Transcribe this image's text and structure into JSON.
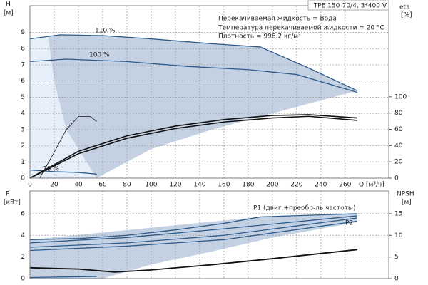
{
  "header": "TPE 150-70/4, 3*400 V",
  "notes": [
    "Перекачиваемая жидкость = Вода",
    "Температура перекачиваемой жидкости = 20 °C",
    "Плотность = 998.2 кг/м³"
  ],
  "chart_data": [
    {
      "type": "line",
      "y_label": "H",
      "y_unit": "[м]",
      "y2_label": "eta",
      "y2_unit": "[%]",
      "x_label": "Q [м³/ч]",
      "xlim": [
        0,
        296
      ],
      "xticks": [
        0,
        20,
        40,
        60,
        80,
        100,
        120,
        140,
        160,
        180,
        200,
        220,
        240,
        260
      ],
      "ylim": [
        0,
        10.65
      ],
      "yticks": [
        0,
        1,
        2,
        3,
        4,
        5,
        6,
        7,
        8,
        9
      ],
      "y2lim": [
        0,
        212
      ],
      "y2ticks": [
        0,
        20,
        40,
        60,
        80,
        100
      ],
      "grid": true,
      "areas": [
        {
          "color": "#e6eff9",
          "x": [
            0,
            0,
            15,
            20,
            30,
            55
          ],
          "y": [
            0,
            8.6,
            8.7,
            6,
            3,
            0
          ]
        },
        {
          "color": "#c3d1e2",
          "x": [
            55,
            30,
            20,
            15,
            25,
            60,
            100,
            150,
            190,
            230,
            270,
            200,
            150,
            100
          ],
          "y": [
            0,
            3,
            6,
            8.7,
            8.85,
            8.8,
            8.6,
            8.3,
            8.1,
            6.8,
            5.4,
            4,
            3,
            1.8
          ]
        }
      ],
      "series": [
        {
          "name": "110 %",
          "color": "#2e5a8a",
          "width": 1.3,
          "x": [
            0,
            25,
            60,
            100,
            150,
            190,
            230,
            270
          ],
          "values": [
            8.6,
            8.85,
            8.8,
            8.6,
            8.3,
            8.1,
            6.8,
            5.4
          ]
        },
        {
          "name": "100 %",
          "color": "#2e5a8a",
          "width": 1.3,
          "x": [
            0,
            30,
            80,
            130,
            180,
            220,
            270
          ],
          "values": [
            7.2,
            7.35,
            7.2,
            6.9,
            6.7,
            6.4,
            5.3
          ]
        },
        {
          "name": "20 %",
          "color": "#2e5a8a",
          "width": 1.3,
          "x": [
            0,
            20,
            40,
            55
          ],
          "values": [
            0.5,
            0.4,
            0.35,
            0.25
          ]
        },
        {
          "color": "#111111",
          "width": 1.6,
          "axis": "y2",
          "x": [
            0,
            40,
            80,
            120,
            160,
            200,
            230,
            270
          ],
          "values": [
            0,
            33,
            52,
            64,
            72,
            77,
            78,
            74
          ]
        },
        {
          "color": "#111111",
          "width": 1.6,
          "axis": "y2",
          "x": [
            0,
            40,
            80,
            120,
            160,
            200,
            230,
            270
          ],
          "values": [
            0,
            30,
            49,
            61,
            69,
            74,
            76,
            71
          ]
        },
        {
          "color": "#111111",
          "width": 0.8,
          "x": [
            8,
            20,
            30,
            40,
            50,
            55
          ],
          "values": [
            0,
            1.6,
            3,
            3.8,
            3.8,
            3.5
          ]
        }
      ]
    },
    {
      "type": "line",
      "y_label": "P",
      "y_unit": "[кВт]",
      "y2_label": "NPSH",
      "y2_unit": "[м]",
      "xlim": [
        0,
        296
      ],
      "xticks": [
        0,
        20,
        40,
        60,
        80,
        100,
        120,
        140,
        160,
        180,
        200,
        220,
        240,
        260
      ],
      "ylim": [
        0,
        8.1
      ],
      "yticks": [
        0,
        2,
        4,
        6
      ],
      "y2lim": [
        0,
        20.25
      ],
      "y2ticks": [
        0,
        5,
        10,
        15
      ],
      "grid": true,
      "areas": [
        {
          "color": "#c3d1e2",
          "x": [
            0,
            0,
            190,
            270,
            270,
            200,
            150,
            100,
            60
          ],
          "y": [
            0,
            3.6,
            5.7,
            6.0,
            5.2,
            3.8,
            2.5,
            1.3,
            0
          ]
        }
      ],
      "series": [
        {
          "name": "P1 (двиг.+преобр-ль частоты)",
          "color": "#2e5a8a",
          "width": 1.3,
          "x": [
            0,
            40,
            80,
            120,
            160,
            190,
            270
          ],
          "values": [
            3.6,
            3.7,
            4.0,
            4.5,
            5.1,
            5.7,
            6.0
          ]
        },
        {
          "color": "#2e5a8a",
          "width": 1.3,
          "x": [
            0,
            80,
            160,
            270
          ],
          "values": [
            3.3,
            3.8,
            4.6,
            5.8
          ]
        },
        {
          "color": "#2e5a8a",
          "width": 1.3,
          "x": [
            0,
            80,
            160,
            270
          ],
          "values": [
            2.9,
            3.3,
            4.0,
            5.6
          ]
        },
        {
          "name": "P2",
          "color": "#2e5a8a",
          "width": 1.3,
          "x": [
            0,
            80,
            160,
            270
          ],
          "values": [
            2.6,
            3.0,
            3.6,
            5.3
          ]
        },
        {
          "color": "#111111",
          "width": 1.8,
          "axis": "y2",
          "x": [
            0,
            40,
            70,
            100,
            150,
            200,
            270
          ],
          "values": [
            2.5,
            2.2,
            1.5,
            2.0,
            3.2,
            4.6,
            6.7
          ]
        },
        {
          "color": "#2e5a8a",
          "width": 1.3,
          "x": [
            0,
            55
          ],
          "values": [
            0.1,
            0.2
          ]
        }
      ]
    }
  ]
}
